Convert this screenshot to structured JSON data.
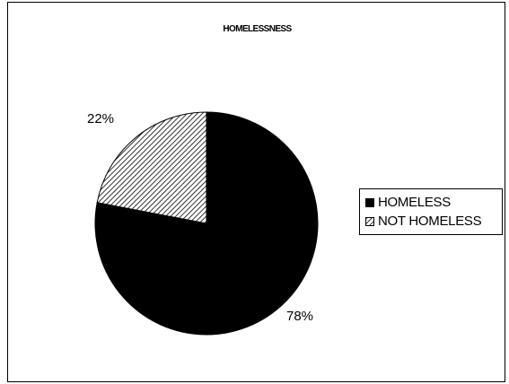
{
  "chart_data": {
    "type": "pie",
    "title": "HOMELESSNESS",
    "categories": [
      "HOMELESS",
      "NOT HOMELESS"
    ],
    "values": [
      78,
      22
    ],
    "data_labels": [
      "78%",
      "22%"
    ],
    "colors": [
      "#000000",
      "hatched"
    ],
    "legend_position": "right"
  }
}
